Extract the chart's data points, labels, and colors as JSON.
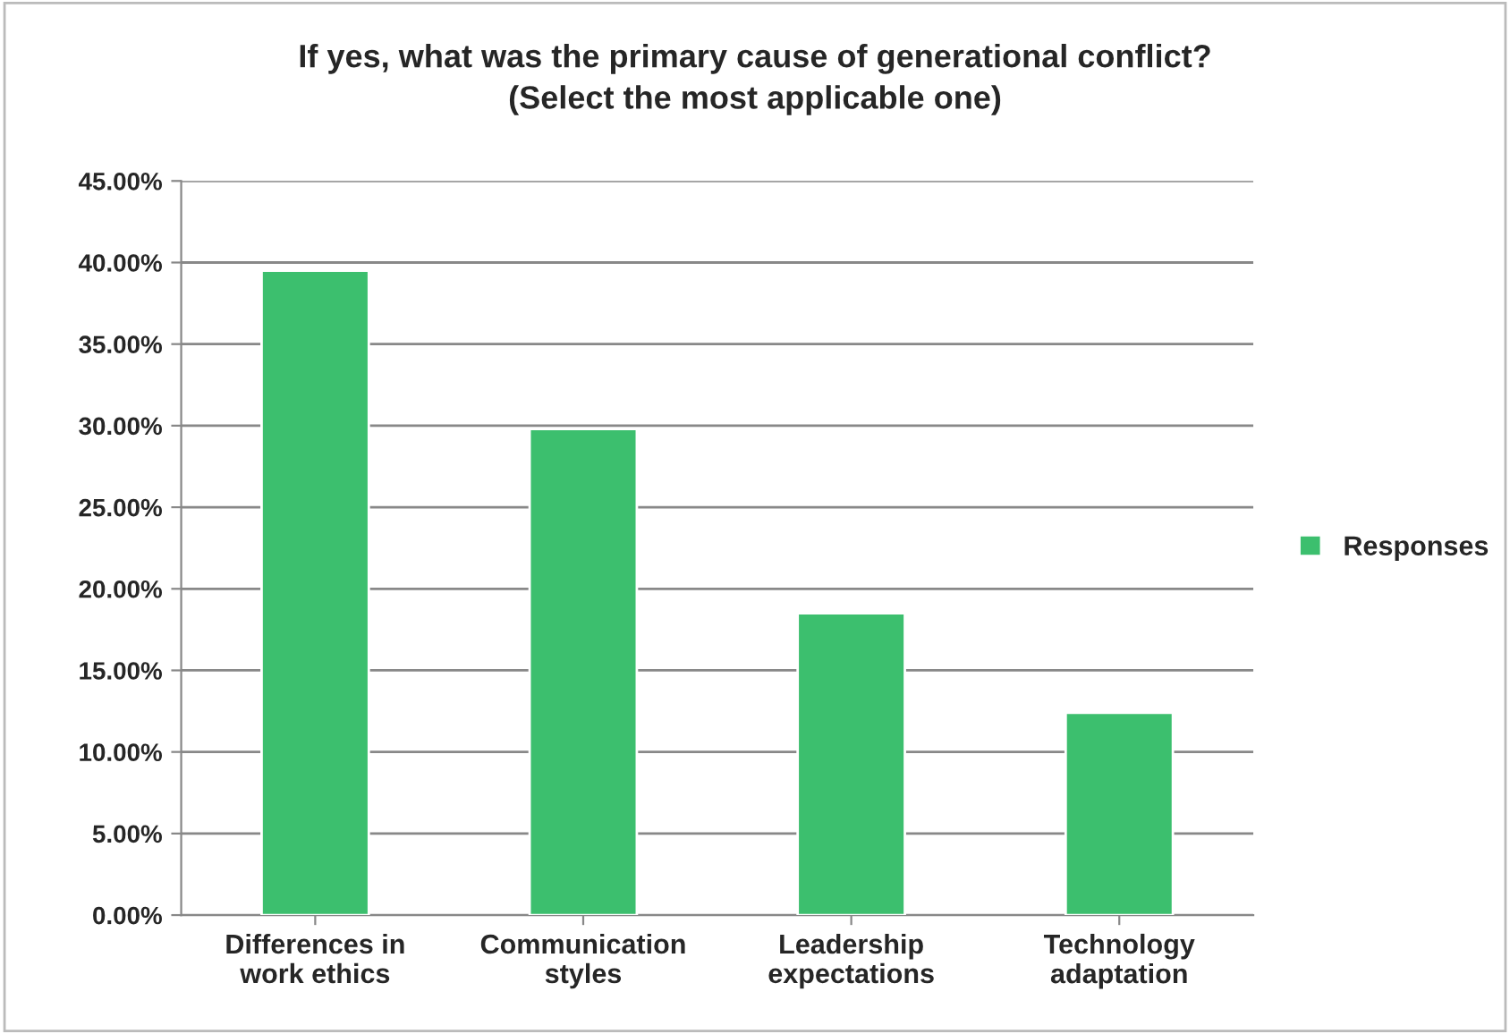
{
  "chart_data": {
    "type": "bar",
    "title": "If yes, what was the primary cause of generational conflict?",
    "subtitle": "(Select the most applicable one)",
    "categories": [
      "Differences in\nwork ethics",
      "Communication\nstyles",
      "Leadership\nexpectations",
      "Technology\nadaptation"
    ],
    "series": [
      {
        "name": "Responses",
        "color": "#3cbf6e",
        "values": [
          39.5,
          29.8,
          18.5,
          12.4
        ]
      }
    ],
    "ylim": [
      0,
      45
    ],
    "yticks": [
      {
        "value": 0,
        "label": "0.00%"
      },
      {
        "value": 5,
        "label": "5.00%"
      },
      {
        "value": 10,
        "label": "10.00%"
      },
      {
        "value": 15,
        "label": "15.00%"
      },
      {
        "value": 20,
        "label": "20.00%"
      },
      {
        "value": 25,
        "label": "25.00%"
      },
      {
        "value": 30,
        "label": "30.00%"
      },
      {
        "value": 35,
        "label": "35.00%"
      },
      {
        "value": 40,
        "label": "40.00%"
      },
      {
        "value": 45,
        "label": "45.00%"
      }
    ],
    "grid": "y",
    "legend": "right"
  }
}
